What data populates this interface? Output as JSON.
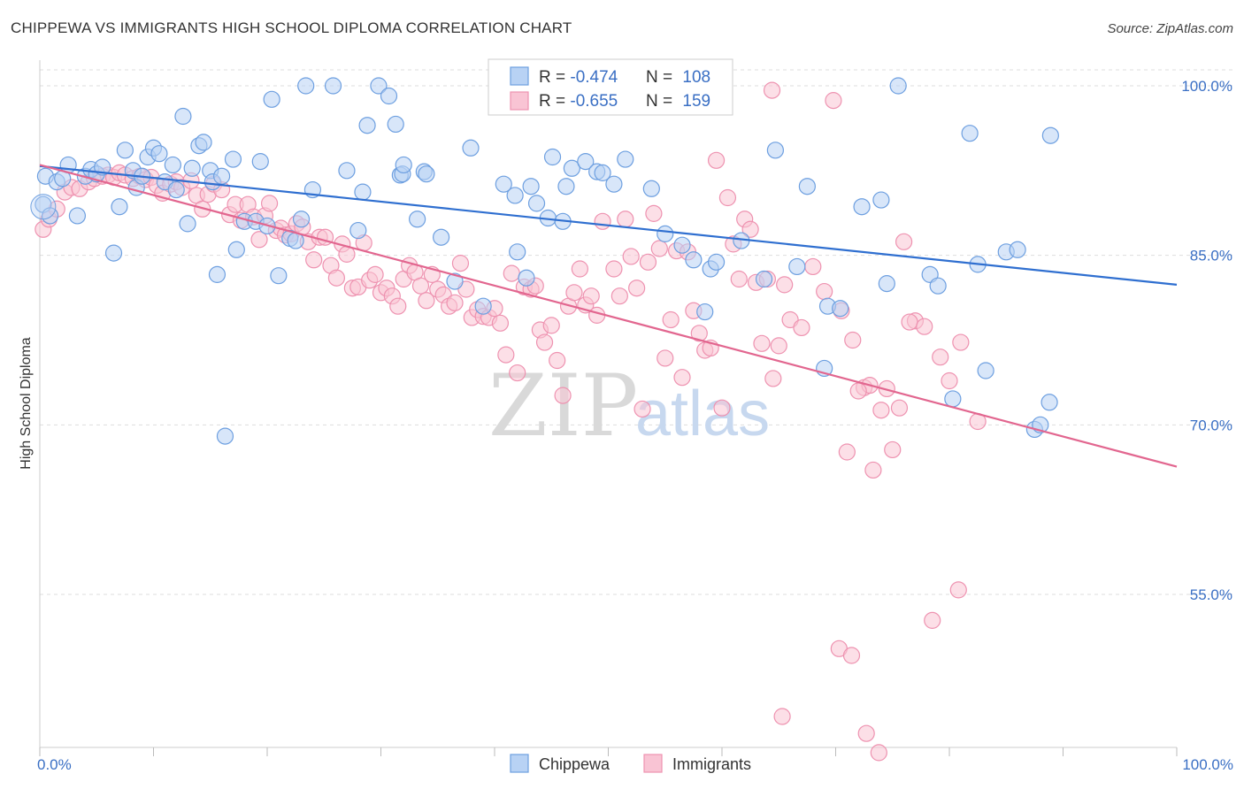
{
  "title": "CHIPPEWA VS IMMIGRANTS HIGH SCHOOL DIPLOMA CORRELATION CHART",
  "source": "Source: ZipAtlas.com",
  "watermark": {
    "zip": "ZIP",
    "atlas": "atlas"
  },
  "legend": {
    "rows": [
      {
        "r_label": "R = ",
        "r_value": "-0.474",
        "n_label": "N = ",
        "n_value": "108"
      },
      {
        "r_label": "R = ",
        "r_value": "-0.655",
        "n_label": "N = ",
        "n_value": "159"
      }
    ]
  },
  "colors": {
    "chippewa_fill": "#b8d2f4",
    "chippewa_stroke": "#6d9fe0",
    "chippewa_line": "#2f6fd0",
    "immigrants_fill": "#f9c4d4",
    "immigrants_stroke": "#ee92b0",
    "immigrants_line": "#e2668f",
    "grid": "#dddddd",
    "tick_text": "#3a6fc4"
  },
  "chart_data": {
    "type": "scatter",
    "title": "CHIPPEWA VS IMMIGRANTS HIGH SCHOOL DIPLOMA CORRELATION CHART",
    "xlabel": "",
    "ylabel": "High School Diploma",
    "xlim": [
      0,
      100
    ],
    "ylim": [
      40,
      102
    ],
    "x_tick_labels": [
      "0.0%",
      "100.0%"
    ],
    "y_ticks": [
      55,
      70,
      85,
      100
    ],
    "y_tick_labels": [
      "55.0%",
      "70.0%",
      "85.0%",
      "100.0%"
    ],
    "grid": true,
    "legend_position": "bottom",
    "series": [
      {
        "name": "Chippewa",
        "r": -0.474,
        "n": 108,
        "trend": {
          "x": [
            0,
            100
          ],
          "y": [
            92.9,
            82.4
          ]
        },
        "points": [
          [
            0.3,
            89.5
          ],
          [
            0.5,
            92.0
          ],
          [
            0.9,
            88.5
          ],
          [
            1.5,
            91.5
          ],
          [
            2,
            91.8
          ],
          [
            2.5,
            93
          ],
          [
            3.3,
            88.5
          ],
          [
            4,
            92
          ],
          [
            4.5,
            92.6
          ],
          [
            5,
            92.2
          ],
          [
            5.5,
            92.8
          ],
          [
            6.5,
            85.2
          ],
          [
            7,
            89.3
          ],
          [
            7.5,
            94.3
          ],
          [
            8.2,
            92.5
          ],
          [
            8.5,
            91
          ],
          [
            9,
            92
          ],
          [
            9.5,
            93.7
          ],
          [
            10,
            94.5
          ],
          [
            10.5,
            94
          ],
          [
            11,
            91.5
          ],
          [
            11.7,
            93
          ],
          [
            12,
            90.8
          ],
          [
            12.6,
            97.3
          ],
          [
            13,
            87.8
          ],
          [
            13.4,
            92.7
          ],
          [
            14,
            94.7
          ],
          [
            14.4,
            95
          ],
          [
            15,
            92.5
          ],
          [
            15.2,
            91.5
          ],
          [
            15.6,
            83.3
          ],
          [
            16,
            92
          ],
          [
            16.3,
            69
          ],
          [
            17,
            93.5
          ],
          [
            17.3,
            85.5
          ],
          [
            18,
            88
          ],
          [
            19,
            88
          ],
          [
            19.4,
            93.3
          ],
          [
            20,
            87.6
          ],
          [
            20.4,
            98.8
          ],
          [
            21,
            83.2
          ],
          [
            22,
            86.5
          ],
          [
            22.5,
            86.3
          ],
          [
            23,
            88.2
          ],
          [
            23.4,
            100
          ],
          [
            24,
            90.8
          ],
          [
            25.8,
            100
          ],
          [
            27,
            92.5
          ],
          [
            28,
            87.2
          ],
          [
            28.4,
            90.6
          ],
          [
            28.8,
            96.5
          ],
          [
            29.8,
            100
          ],
          [
            30.7,
            99.1
          ],
          [
            31.3,
            96.6
          ],
          [
            31.7,
            92.1
          ],
          [
            31.9,
            92.2
          ],
          [
            32,
            93
          ],
          [
            33.2,
            88.2
          ],
          [
            33.8,
            92.4
          ],
          [
            34,
            92.2
          ],
          [
            35.3,
            86.6
          ],
          [
            36.5,
            82.7
          ],
          [
            37.9,
            94.5
          ],
          [
            39,
            80.5
          ],
          [
            40.8,
            91.3
          ],
          [
            41.8,
            90.3
          ],
          [
            42,
            85.3
          ],
          [
            42.8,
            83
          ],
          [
            43.2,
            91.1
          ],
          [
            43.7,
            89.6
          ],
          [
            44.7,
            88.3
          ],
          [
            45.1,
            93.7
          ],
          [
            46,
            88
          ],
          [
            46.3,
            91.1
          ],
          [
            46.8,
            92.7
          ],
          [
            48,
            93.3
          ],
          [
            49,
            92.4
          ],
          [
            49.5,
            92.3
          ],
          [
            50.5,
            91.3
          ],
          [
            51.5,
            93.5
          ],
          [
            53.8,
            90.9
          ],
          [
            55,
            86.9
          ],
          [
            56.5,
            85.9
          ],
          [
            57.5,
            84.6
          ],
          [
            58.5,
            80
          ],
          [
            59,
            83.8
          ],
          [
            59.5,
            84.4
          ],
          [
            61.7,
            86.3
          ],
          [
            63.7,
            82.9
          ],
          [
            64.7,
            94.3
          ],
          [
            66.6,
            84
          ],
          [
            67.5,
            91.1
          ],
          [
            69,
            75
          ],
          [
            69.3,
            80.5
          ],
          [
            70.4,
            80.3
          ],
          [
            72.3,
            89.3
          ],
          [
            74,
            89.9
          ],
          [
            74.5,
            82.5
          ],
          [
            75.5,
            100
          ],
          [
            78.3,
            83.3
          ],
          [
            79,
            82.3
          ],
          [
            80.3,
            72.3
          ],
          [
            81.8,
            95.8
          ],
          [
            82.5,
            84.2
          ],
          [
            83.2,
            74.8
          ],
          [
            85,
            85.3
          ],
          [
            86,
            85.5
          ],
          [
            87.5,
            69.6
          ],
          [
            88,
            70
          ],
          [
            88.8,
            72
          ],
          [
            88.9,
            95.6
          ]
        ]
      },
      {
        "name": "Immigrants",
        "r": -0.655,
        "n": 159,
        "trend": {
          "x": [
            0,
            100
          ],
          "y": [
            93,
            66.3
          ]
        },
        "points": [
          [
            0.3,
            87.3
          ],
          [
            0.8,
            88.2
          ],
          [
            1.5,
            89.1
          ],
          [
            2.2,
            90.6
          ],
          [
            2.8,
            91
          ],
          [
            3.5,
            90.9
          ],
          [
            4.3,
            91.5
          ],
          [
            4.8,
            91.8
          ],
          [
            5.5,
            92
          ],
          [
            6,
            92.1
          ],
          [
            6.5,
            91.9
          ],
          [
            7,
            92.3
          ],
          [
            7.5,
            92.1
          ],
          [
            8.2,
            91.8
          ],
          [
            8.8,
            92
          ],
          [
            9.3,
            91.7
          ],
          [
            9.8,
            91.9
          ],
          [
            10.3,
            91.2
          ],
          [
            10.8,
            90.5
          ],
          [
            11.5,
            91.3
          ],
          [
            12,
            91.5
          ],
          [
            12.5,
            91
          ],
          [
            13.3,
            91.6
          ],
          [
            13.8,
            90.3
          ],
          [
            14.3,
            89.1
          ],
          [
            14.8,
            90.4
          ],
          [
            15.3,
            91.3
          ],
          [
            16,
            90.8
          ],
          [
            16.7,
            88.6
          ],
          [
            17.2,
            89.5
          ],
          [
            17.7,
            88.1
          ],
          [
            18.3,
            89.5
          ],
          [
            18.8,
            88.4
          ],
          [
            19.3,
            86.4
          ],
          [
            19.8,
            88.5
          ],
          [
            20.2,
            89.6
          ],
          [
            20.8,
            87.2
          ],
          [
            21.2,
            87.4
          ],
          [
            21.6,
            86.8
          ],
          [
            22.1,
            86.9
          ],
          [
            22.6,
            87.8
          ],
          [
            23.1,
            87.5
          ],
          [
            23.6,
            86.2
          ],
          [
            24.1,
            84.6
          ],
          [
            24.6,
            86.6
          ],
          [
            25.1,
            86.6
          ],
          [
            25.6,
            84.1
          ],
          [
            26.1,
            83
          ],
          [
            26.6,
            86
          ],
          [
            27,
            85.1
          ],
          [
            27.5,
            82.1
          ],
          [
            28,
            82.2
          ],
          [
            28.5,
            86.1
          ],
          [
            29,
            82.8
          ],
          [
            29.5,
            83.3
          ],
          [
            30,
            81.7
          ],
          [
            30.5,
            82.1
          ],
          [
            31,
            81.4
          ],
          [
            31.5,
            80.5
          ],
          [
            32,
            82.9
          ],
          [
            32.5,
            84.1
          ],
          [
            33,
            83.5
          ],
          [
            33.5,
            82.3
          ],
          [
            34,
            81
          ],
          [
            34.5,
            83.3
          ],
          [
            35,
            82
          ],
          [
            35.5,
            81.5
          ],
          [
            36,
            80.5
          ],
          [
            36.5,
            80.8
          ],
          [
            37,
            84.3
          ],
          [
            37.5,
            82
          ],
          [
            38,
            79.5
          ],
          [
            38.5,
            80.2
          ],
          [
            39,
            79.6
          ],
          [
            39.5,
            79.5
          ],
          [
            40,
            80.3
          ],
          [
            40.5,
            79
          ],
          [
            41,
            76.2
          ],
          [
            41.5,
            83.4
          ],
          [
            42,
            74.6
          ],
          [
            42.6,
            82.2
          ],
          [
            43.2,
            82
          ],
          [
            43.6,
            82.3
          ],
          [
            44,
            78.4
          ],
          [
            44.4,
            77.3
          ],
          [
            45,
            78.8
          ],
          [
            45.5,
            75.7
          ],
          [
            46,
            72.6
          ],
          [
            46.5,
            80.5
          ],
          [
            47,
            81.7
          ],
          [
            47.5,
            83.8
          ],
          [
            48,
            80.6
          ],
          [
            48.5,
            81.4
          ],
          [
            49,
            79.7
          ],
          [
            49.5,
            88
          ],
          [
            50.5,
            83.8
          ],
          [
            51,
            81.4
          ],
          [
            51.5,
            88.2
          ],
          [
            52,
            84.9
          ],
          [
            52.5,
            82.1
          ],
          [
            53,
            71.4
          ],
          [
            53.5,
            84.4
          ],
          [
            54,
            88.7
          ],
          [
            54.5,
            85.6
          ],
          [
            55,
            75.9
          ],
          [
            55.5,
            79.3
          ],
          [
            56,
            85.4
          ],
          [
            56.5,
            74.2
          ],
          [
            57,
            85.3
          ],
          [
            57.5,
            80.1
          ],
          [
            58,
            78.1
          ],
          [
            58.5,
            76.6
          ],
          [
            59,
            76.8
          ],
          [
            59.5,
            93.4
          ],
          [
            60,
            71.5
          ],
          [
            60.5,
            90.1
          ],
          [
            61,
            86
          ],
          [
            61.5,
            82.9
          ],
          [
            62,
            88.2
          ],
          [
            62.5,
            87.3
          ],
          [
            63,
            82.6
          ],
          [
            63.5,
            77.2
          ],
          [
            64,
            82.9
          ],
          [
            64.5,
            74.1
          ],
          [
            65,
            77
          ],
          [
            65.5,
            82.4
          ],
          [
            66,
            79.3
          ],
          [
            67,
            78.6
          ],
          [
            68,
            84
          ],
          [
            69,
            81.8
          ],
          [
            70.5,
            80.1
          ],
          [
            71.5,
            77.5
          ],
          [
            72.5,
            73.3
          ],
          [
            73,
            73.5
          ],
          [
            74,
            71.3
          ],
          [
            75,
            67.8
          ],
          [
            76,
            86.2
          ],
          [
            77,
            79.2
          ],
          [
            65.3,
            44.2
          ],
          [
            70.3,
            50.2
          ],
          [
            71.4,
            49.6
          ],
          [
            72.7,
            42.7
          ],
          [
            73.8,
            41
          ],
          [
            78.5,
            52.7
          ],
          [
            80.8,
            55.4
          ],
          [
            82.5,
            70.3
          ],
          [
            64.4,
            99.6
          ],
          [
            69.8,
            98.7
          ],
          [
            71,
            67.6
          ],
          [
            72,
            73
          ],
          [
            73.3,
            66
          ],
          [
            74.5,
            73.2
          ],
          [
            75.6,
            71.5
          ],
          [
            76.5,
            79.1
          ],
          [
            77.8,
            78.7
          ],
          [
            79.2,
            76
          ],
          [
            80,
            73.9
          ],
          [
            81,
            77.3
          ]
        ]
      }
    ]
  },
  "bottom_legend": [
    {
      "label": "Chippewa"
    },
    {
      "label": "Immigrants"
    }
  ]
}
